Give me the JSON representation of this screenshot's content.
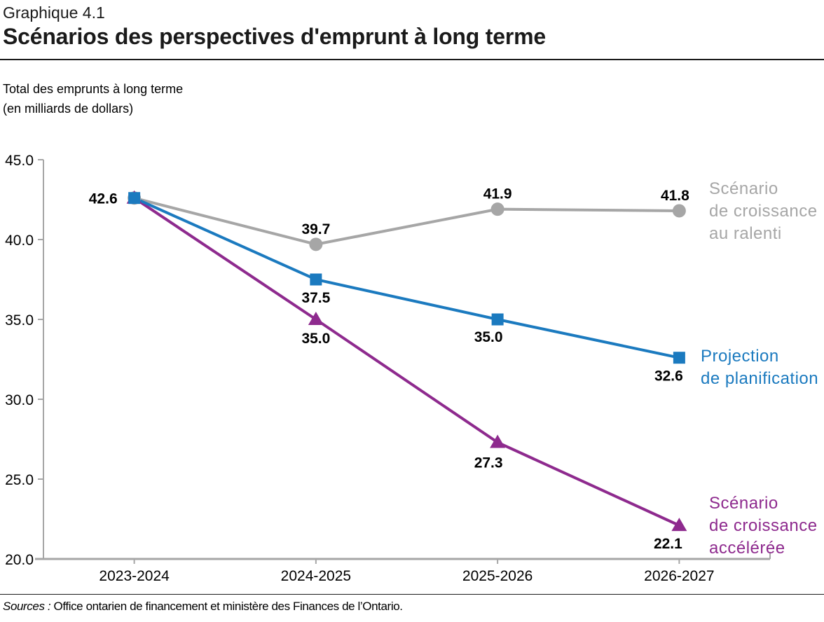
{
  "header": {
    "figure_number": "Graphique 4.1",
    "title": "Scénarios des perspectives d'emprunt à long terme"
  },
  "y_axis_title": [
    "Total des emprunts à long terme",
    "(en milliards de dollars)"
  ],
  "chart_data": {
    "type": "line",
    "title": "Scénarios des perspectives d'emprunt à long terme",
    "ylabel": "Total des emprunts à long terme (en milliards de dollars)",
    "xlabel": "",
    "categories": [
      "2023-2024",
      "2024-2025",
      "2025-2026",
      "2026-2027"
    ],
    "series": [
      {
        "name": "Scénario de croissance au ralenti",
        "legend_lines": [
          "Scénario",
          "de croissance",
          "au ralenti"
        ],
        "color": "#a6a6a6",
        "marker": "circle",
        "values": [
          42.6,
          39.7,
          41.9,
          41.8
        ]
      },
      {
        "name": "Projection de planification",
        "legend_lines": [
          "Projection",
          "de planification"
        ],
        "color": "#1b7abf",
        "marker": "square",
        "values": [
          42.6,
          37.5,
          35.0,
          32.6
        ]
      },
      {
        "name": "Scénario de croissance accélérée",
        "legend_lines": [
          "Scénario",
          "de croissance",
          "accélérée"
        ],
        "color": "#8e2a8e",
        "marker": "triangle",
        "values": [
          42.6,
          35.0,
          27.3,
          22.1
        ]
      }
    ],
    "ylim": [
      20,
      45
    ],
    "y_tick_labels": [
      "45.0",
      "40.0",
      "35.0",
      "30.0",
      "25.0",
      "20.0"
    ],
    "grid": false,
    "data_labels": true,
    "legend_position": "right",
    "axis_color": "#a6a6a6",
    "label_color": "#000000"
  },
  "footer": {
    "source_label": "Sources :",
    "source_text": "Office ontarien de financement et ministère des Finances de l’Ontario."
  }
}
